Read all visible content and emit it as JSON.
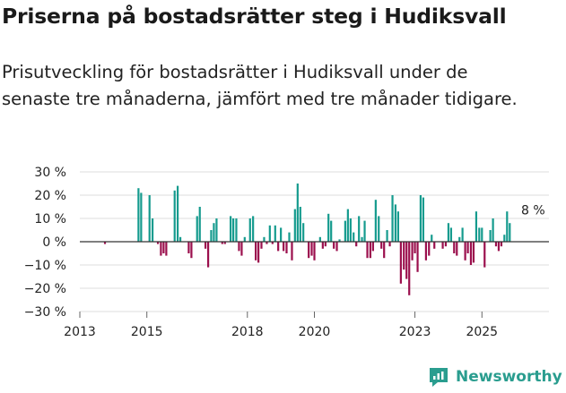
{
  "title": "Priserna på bostadsrätter steg i Hudiksvall",
  "subtitle": "Prisutveckling för bostadsrätter i Hudiksvall under de senaste tre månaderna, jämfört med tre månader tidigare.",
  "brand": {
    "name": "Newsworthy",
    "color": "#2a9d8f"
  },
  "colors": {
    "positive": "#159b8e",
    "negative": "#9b0f4d",
    "grid": "#dddddd",
    "zero": "#333333"
  },
  "chart_data": {
    "type": "bar",
    "title": "Priserna på bostadsrätter steg i Hudiksvall",
    "xlabel": "",
    "ylabel": "",
    "ylim": [
      -30,
      30
    ],
    "yticks": [
      -30,
      -20,
      -10,
      0,
      10,
      20,
      30
    ],
    "ytick_labels": [
      "−30 %",
      "−20 %",
      "−10 %",
      "0 %",
      "10 %",
      "20 %",
      "30 %"
    ],
    "xlim": [
      2013.0,
      2027.0
    ],
    "xticks": [
      2013,
      2015,
      2018,
      2020,
      2023,
      2025
    ],
    "xtick_labels": [
      "2013",
      "2015",
      "2018",
      "2020",
      "2023",
      "2025"
    ],
    "annotation": {
      "text": "8 %",
      "x": 2026.5,
      "value": 8
    },
    "series": [
      {
        "name": "Prisutveckling",
        "points": [
          {
            "x": 2013.75,
            "value": -1
          },
          {
            "x": 2014.75,
            "value": 23
          },
          {
            "x": 2014.83,
            "value": 21
          },
          {
            "x": 2015.08,
            "value": 20
          },
          {
            "x": 2015.17,
            "value": 10
          },
          {
            "x": 2015.33,
            "value": -1
          },
          {
            "x": 2015.42,
            "value": -6
          },
          {
            "x": 2015.5,
            "value": -5
          },
          {
            "x": 2015.58,
            "value": -6
          },
          {
            "x": 2015.83,
            "value": 22
          },
          {
            "x": 2015.92,
            "value": 24
          },
          {
            "x": 2016.0,
            "value": 2
          },
          {
            "x": 2016.25,
            "value": -5
          },
          {
            "x": 2016.33,
            "value": -7
          },
          {
            "x": 2016.5,
            "value": 11
          },
          {
            "x": 2016.58,
            "value": 15
          },
          {
            "x": 2016.75,
            "value": -3
          },
          {
            "x": 2016.83,
            "value": -11
          },
          {
            "x": 2016.92,
            "value": 5
          },
          {
            "x": 2017.0,
            "value": 8
          },
          {
            "x": 2017.08,
            "value": 10
          },
          {
            "x": 2017.25,
            "value": -1
          },
          {
            "x": 2017.33,
            "value": -1
          },
          {
            "x": 2017.5,
            "value": 11
          },
          {
            "x": 2017.58,
            "value": 10
          },
          {
            "x": 2017.67,
            "value": 10
          },
          {
            "x": 2017.75,
            "value": -4
          },
          {
            "x": 2017.83,
            "value": -6
          },
          {
            "x": 2017.92,
            "value": 2
          },
          {
            "x": 2018.08,
            "value": 10
          },
          {
            "x": 2018.17,
            "value": 11
          },
          {
            "x": 2018.25,
            "value": -8
          },
          {
            "x": 2018.33,
            "value": -9
          },
          {
            "x": 2018.42,
            "value": -3
          },
          {
            "x": 2018.5,
            "value": 2
          },
          {
            "x": 2018.58,
            "value": -1
          },
          {
            "x": 2018.67,
            "value": 7
          },
          {
            "x": 2018.75,
            "value": -1
          },
          {
            "x": 2018.83,
            "value": 7
          },
          {
            "x": 2018.92,
            "value": -4
          },
          {
            "x": 2019.0,
            "value": 6
          },
          {
            "x": 2019.08,
            "value": -4
          },
          {
            "x": 2019.17,
            "value": -5
          },
          {
            "x": 2019.25,
            "value": 4
          },
          {
            "x": 2019.33,
            "value": -8
          },
          {
            "x": 2019.42,
            "value": 14
          },
          {
            "x": 2019.5,
            "value": 25
          },
          {
            "x": 2019.58,
            "value": 15
          },
          {
            "x": 2019.67,
            "value": 8
          },
          {
            "x": 2019.83,
            "value": -7
          },
          {
            "x": 2019.92,
            "value": -6
          },
          {
            "x": 2020.0,
            "value": -8
          },
          {
            "x": 2020.17,
            "value": 2
          },
          {
            "x": 2020.25,
            "value": -3
          },
          {
            "x": 2020.33,
            "value": -2
          },
          {
            "x": 2020.42,
            "value": 12
          },
          {
            "x": 2020.5,
            "value": 9
          },
          {
            "x": 2020.58,
            "value": -3
          },
          {
            "x": 2020.67,
            "value": -4
          },
          {
            "x": 2020.75,
            "value": 1
          },
          {
            "x": 2020.92,
            "value": 9
          },
          {
            "x": 2021.0,
            "value": 14
          },
          {
            "x": 2021.08,
            "value": 10
          },
          {
            "x": 2021.17,
            "value": 4
          },
          {
            "x": 2021.25,
            "value": -2
          },
          {
            "x": 2021.33,
            "value": 11
          },
          {
            "x": 2021.42,
            "value": 2
          },
          {
            "x": 2021.5,
            "value": 9
          },
          {
            "x": 2021.58,
            "value": -7
          },
          {
            "x": 2021.67,
            "value": -7
          },
          {
            "x": 2021.75,
            "value": -4
          },
          {
            "x": 2021.83,
            "value": 18
          },
          {
            "x": 2021.92,
            "value": 11
          },
          {
            "x": 2022.0,
            "value": -3
          },
          {
            "x": 2022.08,
            "value": -7
          },
          {
            "x": 2022.17,
            "value": 5
          },
          {
            "x": 2022.25,
            "value": -2
          },
          {
            "x": 2022.33,
            "value": 20
          },
          {
            "x": 2022.42,
            "value": 16
          },
          {
            "x": 2022.5,
            "value": 13
          },
          {
            "x": 2022.58,
            "value": -18
          },
          {
            "x": 2022.67,
            "value": -12
          },
          {
            "x": 2022.75,
            "value": -16
          },
          {
            "x": 2022.83,
            "value": -23
          },
          {
            "x": 2022.92,
            "value": -8
          },
          {
            "x": 2023.0,
            "value": -5
          },
          {
            "x": 2023.08,
            "value": -13
          },
          {
            "x": 2023.17,
            "value": 20
          },
          {
            "x": 2023.25,
            "value": 19
          },
          {
            "x": 2023.33,
            "value": -8
          },
          {
            "x": 2023.42,
            "value": -6
          },
          {
            "x": 2023.5,
            "value": 3
          },
          {
            "x": 2023.58,
            "value": -3
          },
          {
            "x": 2023.83,
            "value": -3
          },
          {
            "x": 2023.92,
            "value": -2
          },
          {
            "x": 2024.0,
            "value": 8
          },
          {
            "x": 2024.08,
            "value": 6
          },
          {
            "x": 2024.17,
            "value": -5
          },
          {
            "x": 2024.25,
            "value": -6
          },
          {
            "x": 2024.33,
            "value": 2
          },
          {
            "x": 2024.42,
            "value": 6
          },
          {
            "x": 2024.5,
            "value": -8
          },
          {
            "x": 2024.58,
            "value": -5
          },
          {
            "x": 2024.67,
            "value": -10
          },
          {
            "x": 2024.75,
            "value": -9
          },
          {
            "x": 2024.83,
            "value": 13
          },
          {
            "x": 2024.92,
            "value": 6
          },
          {
            "x": 2025.0,
            "value": 6
          },
          {
            "x": 2025.08,
            "value": -11
          },
          {
            "x": 2025.25,
            "value": 5
          },
          {
            "x": 2025.33,
            "value": 10
          },
          {
            "x": 2025.42,
            "value": -2
          },
          {
            "x": 2025.5,
            "value": -4
          },
          {
            "x": 2025.58,
            "value": -2
          },
          {
            "x": 2025.67,
            "value": 3
          },
          {
            "x": 2025.75,
            "value": 13
          },
          {
            "x": 2025.83,
            "value": 8
          }
        ]
      }
    ]
  }
}
